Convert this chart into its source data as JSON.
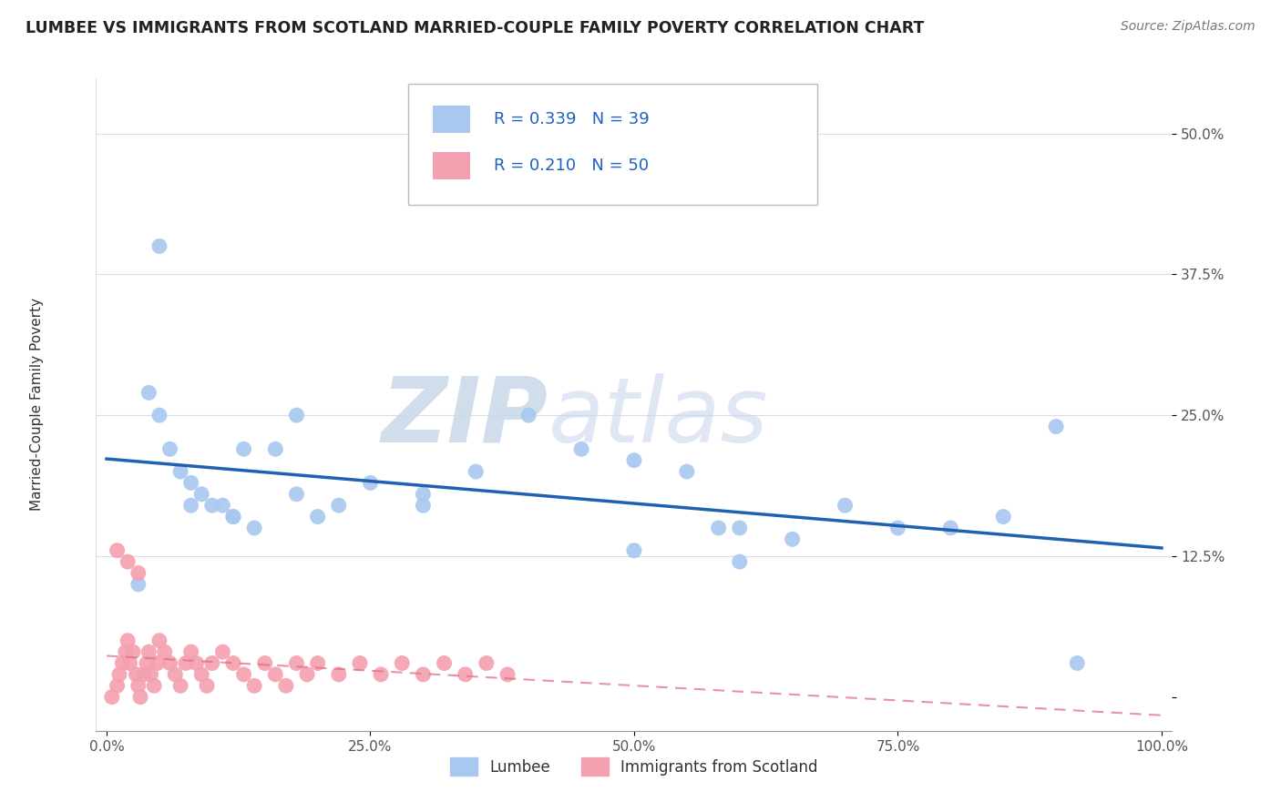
{
  "title": "LUMBEE VS IMMIGRANTS FROM SCOTLAND MARRIED-COUPLE FAMILY POVERTY CORRELATION CHART",
  "source": "Source: ZipAtlas.com",
  "ylabel": "Married-Couple Family Poverty",
  "lumbee_color": "#a8c8f0",
  "scotland_color": "#f4a0b0",
  "trend_lumbee_color": "#2060b0",
  "trend_scotland_color": "#e07080",
  "watermark_color": "#d8e4f0",
  "grid_color": "#d8dde8",
  "legend_text_color": "#2060c0",
  "lumbee_x": [
    3,
    4,
    5,
    6,
    7,
    8,
    9,
    10,
    11,
    12,
    13,
    14,
    16,
    18,
    20,
    22,
    25,
    30,
    35,
    40,
    45,
    50,
    55,
    58,
    60,
    65,
    70,
    75,
    80,
    85,
    90,
    5,
    8,
    12,
    18,
    30,
    50,
    60,
    92
  ],
  "lumbee_y": [
    10,
    27,
    25,
    22,
    20,
    19,
    18,
    17,
    17,
    16,
    22,
    15,
    22,
    25,
    16,
    17,
    19,
    18,
    20,
    25,
    22,
    21,
    20,
    15,
    15,
    14,
    17,
    15,
    15,
    16,
    24,
    40,
    17,
    16,
    18,
    17,
    13,
    12,
    3
  ],
  "scotland_x": [
    0.5,
    1,
    1.2,
    1.5,
    1.8,
    2,
    2.2,
    2.5,
    2.8,
    3,
    3.2,
    3.5,
    3.8,
    4,
    4.2,
    4.5,
    4.8,
    5,
    5.5,
    6,
    6.5,
    7,
    7.5,
    8,
    8.5,
    9,
    9.5,
    10,
    11,
    12,
    13,
    14,
    15,
    16,
    17,
    18,
    19,
    20,
    22,
    24,
    26,
    28,
    30,
    32,
    34,
    36,
    38,
    2,
    3,
    1
  ],
  "scotland_y": [
    0,
    1,
    2,
    3,
    4,
    5,
    3,
    4,
    2,
    1,
    0,
    2,
    3,
    4,
    2,
    1,
    3,
    5,
    4,
    3,
    2,
    1,
    3,
    4,
    3,
    2,
    1,
    3,
    4,
    3,
    2,
    1,
    3,
    2,
    1,
    3,
    2,
    3,
    2,
    3,
    2,
    3,
    2,
    3,
    2,
    3,
    2,
    12,
    11,
    13
  ]
}
